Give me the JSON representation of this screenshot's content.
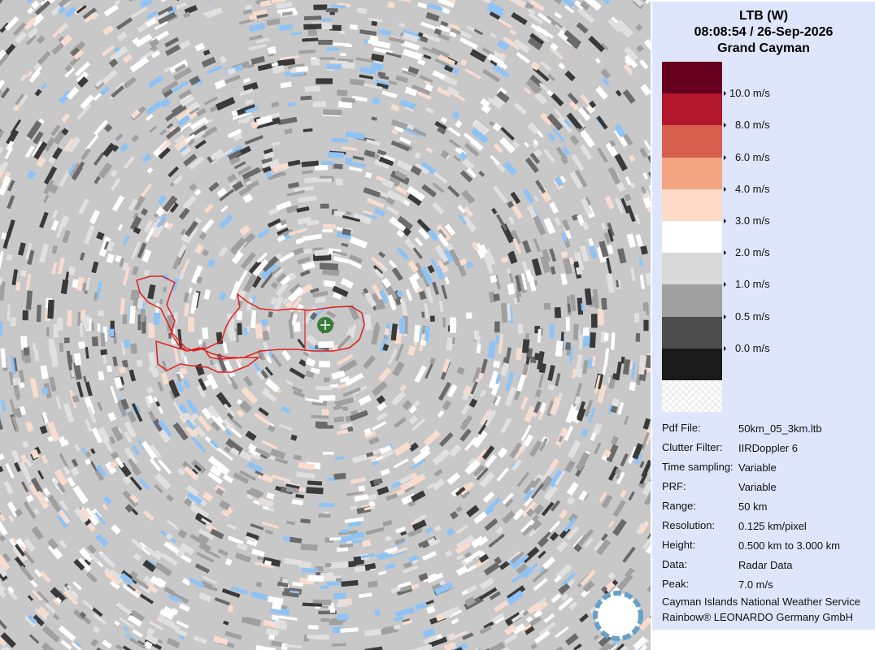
{
  "header": {
    "title": "LTB (W)",
    "timestamp": "08:08:54 / 26-Sep-2026",
    "location": "Grand Cayman"
  },
  "legend": {
    "colors": [
      "#67001f",
      "#b2182b",
      "#d6604d",
      "#f4a582",
      "#fddbc7",
      "#ffffff",
      "#d9d9d9",
      "#a0a0a0",
      "#4d4d4d",
      "#1a1a1a"
    ],
    "labels": [
      "10.0 m/s",
      "8.0 m/s",
      "6.0 m/s",
      "4.0 m/s",
      "3.0 m/s",
      "2.0 m/s",
      "1.0 m/s",
      "0.5 m/s",
      "0.0 m/s"
    ]
  },
  "info": [
    [
      "Pdf File:",
      "50km_05_3km.ltb"
    ],
    [
      "Clutter Filter:",
      "IIRDoppler 6"
    ],
    [
      "Time sampling:",
      "Variable"
    ],
    [
      "PRF:",
      "Variable"
    ],
    [
      "Range:",
      "50 km"
    ],
    [
      "Resolution:",
      "0.125 km/pixel"
    ],
    [
      "Height:",
      "0.500 km to 3.000 km"
    ],
    [
      "Data:",
      "Radar Data"
    ],
    [
      "Peak:",
      "7.0 m/s"
    ]
  ],
  "footer": [
    "Cayman Islands National Weather Service",
    "Rainbow® LEONARDO Germany GmbH"
  ]
}
